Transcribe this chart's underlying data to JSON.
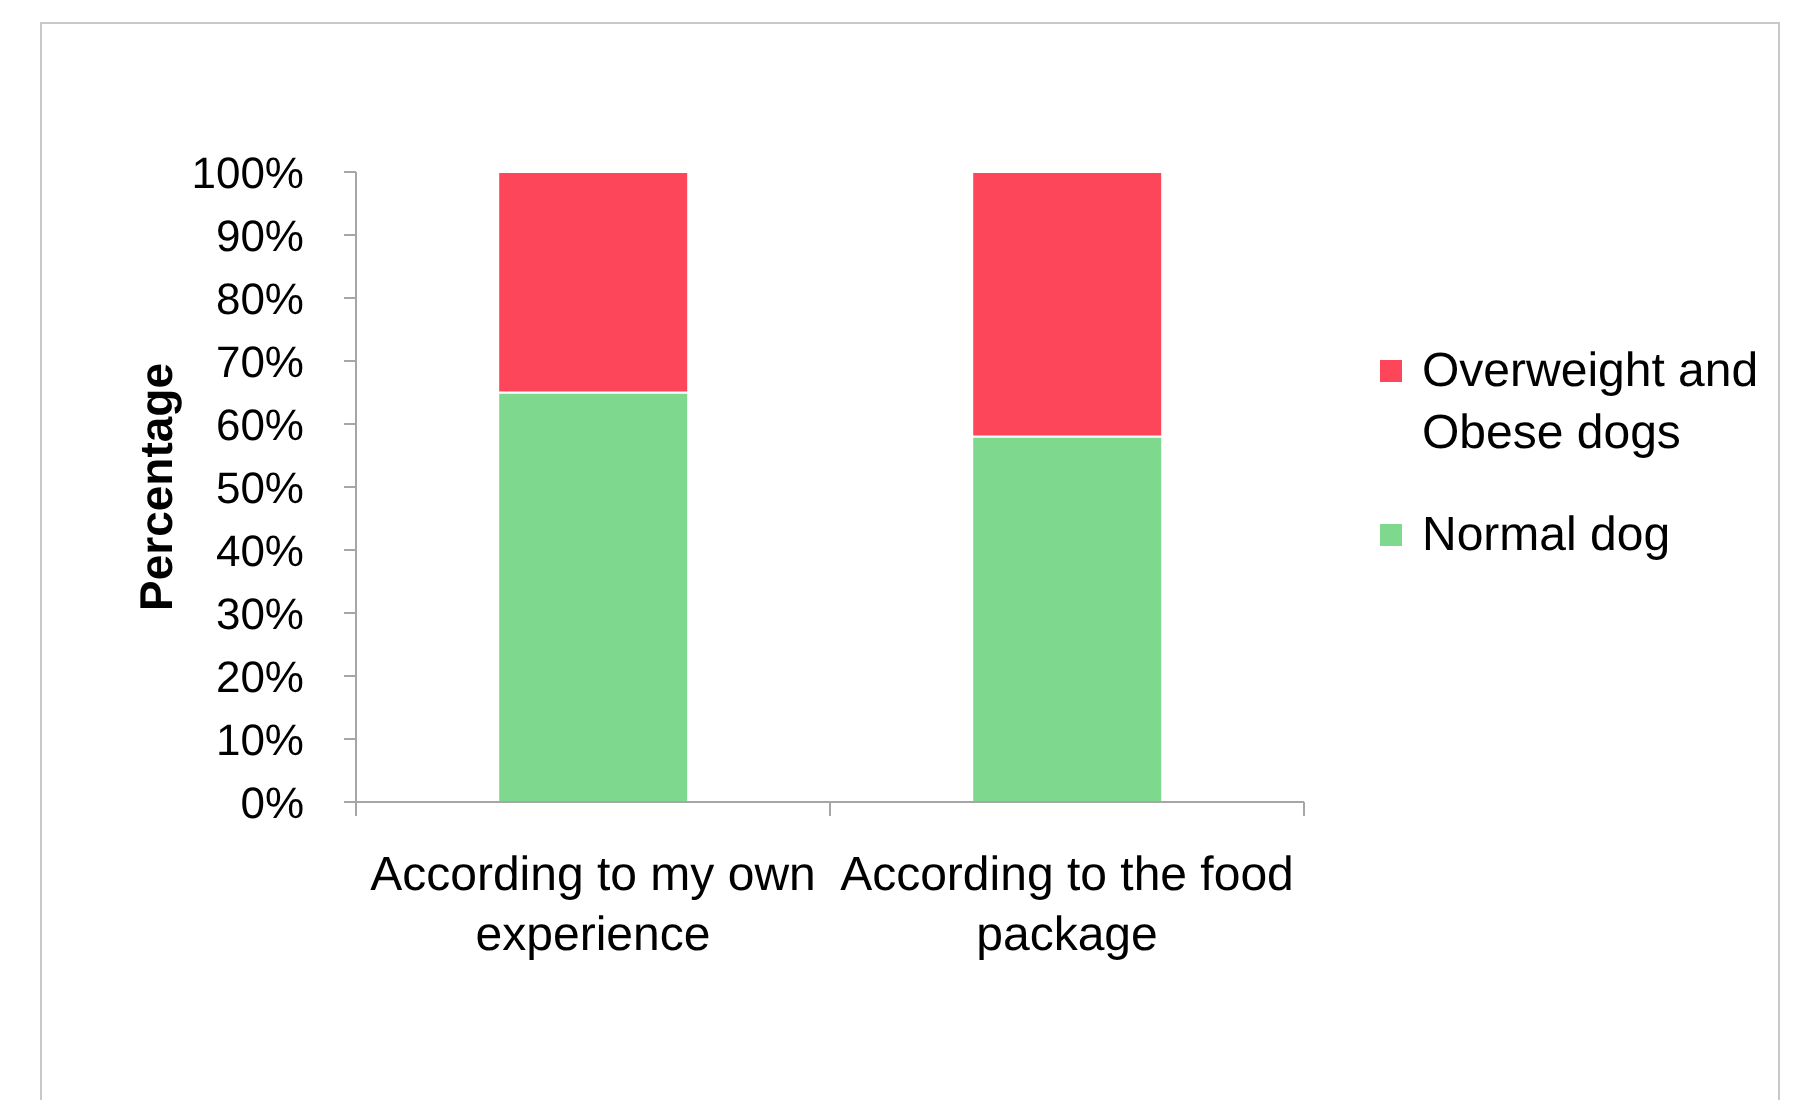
{
  "chart_data": {
    "type": "bar",
    "stacked": true,
    "ylabel": "Percentage",
    "categories": [
      "According to my own experience",
      "According to the food package"
    ],
    "series": [
      {
        "name": "Normal dog",
        "color": "#7ed88e",
        "values": [
          65,
          58
        ]
      },
      {
        "name": "Overweight and Obese dogs",
        "color": "#fd4659",
        "values": [
          35,
          42
        ]
      }
    ],
    "ylim": [
      0,
      100
    ],
    "yticks": [
      {
        "value": 0,
        "label": "0%"
      },
      {
        "value": 10,
        "label": "10%"
      },
      {
        "value": 20,
        "label": "20%"
      },
      {
        "value": 30,
        "label": "30%"
      },
      {
        "value": 40,
        "label": "40%"
      },
      {
        "value": 50,
        "label": "50%"
      },
      {
        "value": 60,
        "label": "60%"
      },
      {
        "value": 70,
        "label": "70%"
      },
      {
        "value": 80,
        "label": "80%"
      },
      {
        "value": 90,
        "label": "90%"
      },
      {
        "value": 100,
        "label": "100%"
      }
    ],
    "legend": "right"
  }
}
